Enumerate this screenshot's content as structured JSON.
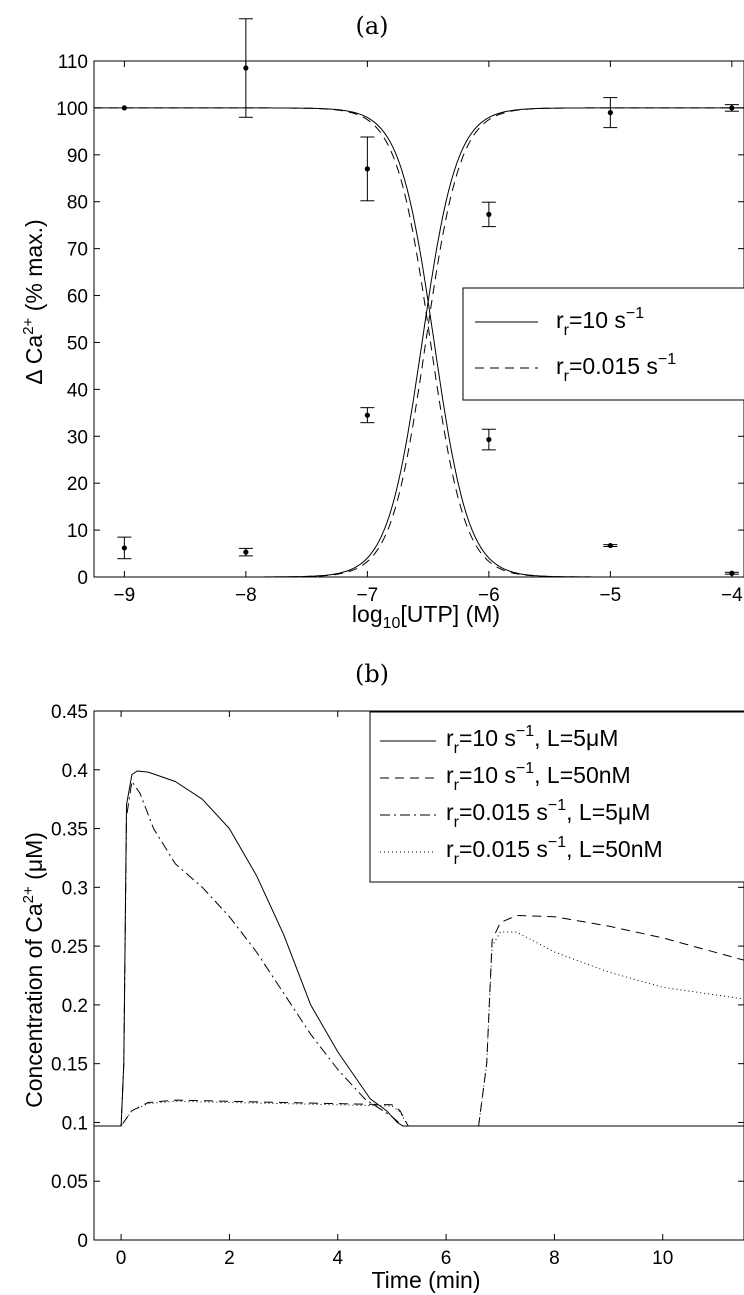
{
  "chart_data": [
    {
      "type": "scatter",
      "title": "(a)",
      "xlabel": "log₁₀[UTP] (M)",
      "ylabel": "Δ Ca²⁺ (% max.)",
      "xlim": [
        -9.25,
        -3.9
      ],
      "ylim": [
        0,
        110
      ],
      "xticks": [
        -9,
        -8,
        -7,
        -6,
        -5,
        -4
      ],
      "xtick_labels": [
        "−9",
        "−8",
        "−7",
        "−6",
        "−5",
        "−4"
      ],
      "yticks": [
        0,
        10,
        20,
        30,
        40,
        50,
        60,
        70,
        80,
        90,
        100,
        110
      ],
      "grid": false,
      "legend_position": "right",
      "series": [
        {
          "name": "r_r=10 s⁻¹",
          "style": "solid",
          "kind": "rising-sigmoid",
          "ec50": -6.55,
          "hill": 0.72
        },
        {
          "name": "r_r=10 s⁻¹",
          "style": "solid",
          "kind": "falling-sigmoid",
          "ec50": -6.45,
          "hill": 0.72
        },
        {
          "name": "r_r=0.015 s⁻¹",
          "style": "dashed",
          "kind": "rising-sigmoid",
          "ec50": -6.52,
          "hill": 0.72
        },
        {
          "name": "r_r=0.015 s⁻¹",
          "style": "dashed",
          "kind": "falling-sigmoid",
          "ec50": -6.48,
          "hill": 0.72
        }
      ],
      "legend": [
        {
          "label": "r_r=10 s⁻¹",
          "style": "solid"
        },
        {
          "label": "r_r=0.015 s⁻¹",
          "style": "dashed"
        }
      ],
      "points": [
        {
          "x": -9,
          "y": 100,
          "err": 0
        },
        {
          "x": -8,
          "y": 108.5,
          "err": 10.5
        },
        {
          "x": -7,
          "y": 87,
          "err": 6.8
        },
        {
          "x": -6,
          "y": 77.3,
          "err": 2.6
        },
        {
          "x": -5,
          "y": 99,
          "err": 3.2
        },
        {
          "x": -4,
          "y": 100,
          "err": 0.7
        },
        {
          "x": -9,
          "y": 6.2,
          "err": 2.3
        },
        {
          "x": -8,
          "y": 5.3,
          "err": 0.8
        },
        {
          "x": -7,
          "y": 34.5,
          "err": 1.6
        },
        {
          "x": -6,
          "y": 29.3,
          "err": 2.2
        },
        {
          "x": -5,
          "y": 6.7,
          "err": 0.2
        },
        {
          "x": -4,
          "y": 0.8,
          "err": 0.2
        }
      ]
    },
    {
      "type": "line",
      "title": "(b)",
      "xlabel": "Time (min)",
      "ylabel": "Concentration of Ca²⁺ (μM)",
      "xlim": [
        -0.5,
        11.5
      ],
      "ylim": [
        0,
        0.45
      ],
      "xticks": [
        0,
        2,
        4,
        6,
        8,
        10
      ],
      "yticks": [
        0,
        0.05,
        0.1,
        0.15,
        0.2,
        0.25,
        0.3,
        0.35,
        0.4,
        0.45
      ],
      "ytick_labels": [
        "0",
        "0.05",
        "0.1",
        "0.15",
        "0.2",
        "0.25",
        "0.3",
        "0.35",
        "0.4",
        "0.45"
      ],
      "grid": false,
      "legend_position": "top-right",
      "legend": [
        {
          "label": "r_r=10 s⁻¹, L=5μM",
          "style": "solid"
        },
        {
          "label": "r_r=10 s⁻¹, L=50nM",
          "style": "dashed"
        },
        {
          "label": "r_r=0.015 s⁻¹, L=5μM",
          "style": "dashdot"
        },
        {
          "label": "r_r=0.015 s⁻¹, L=50nM",
          "style": "dotted"
        }
      ],
      "series": [
        {
          "name": "r_r=10 s⁻¹, L=5μM",
          "style": "solid",
          "x": [
            -0.5,
            0,
            0.05,
            0.1,
            0.2,
            0.3,
            0.5,
            1,
            1.5,
            2,
            2.5,
            3,
            3.5,
            4,
            4.3,
            4.6,
            4.9,
            5.1,
            5.2,
            6,
            8,
            10,
            11.5
          ],
          "y": [
            0.097,
            0.097,
            0.15,
            0.37,
            0.396,
            0.399,
            0.398,
            0.39,
            0.375,
            0.35,
            0.31,
            0.26,
            0.2,
            0.16,
            0.14,
            0.12,
            0.11,
            0.1,
            0.097,
            0.097,
            0.097,
            0.097,
            0.097
          ]
        },
        {
          "name": "r_r=10 s⁻¹, L=50nM",
          "style": "dashed",
          "x": [
            -0.5,
            0,
            0.2,
            0.5,
            1,
            2,
            3,
            4,
            5,
            5.15,
            5.3,
            6,
            6.6,
            6.75,
            6.85,
            7,
            7.3,
            8,
            9,
            10,
            11.5
          ],
          "y": [
            0.097,
            0.097,
            0.11,
            0.117,
            0.119,
            0.118,
            0.117,
            0.116,
            0.115,
            0.11,
            0.097,
            0.097,
            0.097,
            0.15,
            0.255,
            0.27,
            0.276,
            0.275,
            0.267,
            0.257,
            0.238
          ]
        },
        {
          "name": "r_r=0.015 s⁻¹, L=5μM",
          "style": "dashdot",
          "x": [
            -0.5,
            0,
            0.05,
            0.1,
            0.2,
            0.35,
            0.6,
            1,
            1.5,
            2,
            2.5,
            3,
            3.5,
            4,
            4.5,
            5,
            5.2,
            6,
            8,
            10,
            11.5
          ],
          "y": [
            0.097,
            0.097,
            0.15,
            0.36,
            0.39,
            0.38,
            0.35,
            0.32,
            0.3,
            0.275,
            0.245,
            0.21,
            0.175,
            0.145,
            0.12,
            0.105,
            0.097,
            0.097,
            0.097,
            0.097,
            0.097
          ]
        },
        {
          "name": "r_r=0.015 s⁻¹, L=50nM",
          "style": "dotted",
          "x": [
            -0.5,
            0,
            0.2,
            0.5,
            1,
            2,
            3,
            4,
            5,
            5.15,
            5.3,
            6,
            6.6,
            6.75,
            6.85,
            7,
            7.3,
            8,
            9,
            10,
            11.5
          ],
          "y": [
            0.097,
            0.097,
            0.11,
            0.116,
            0.118,
            0.117,
            0.116,
            0.115,
            0.114,
            0.109,
            0.097,
            0.097,
            0.097,
            0.15,
            0.25,
            0.262,
            0.262,
            0.245,
            0.228,
            0.215,
            0.205
          ]
        }
      ]
    }
  ]
}
